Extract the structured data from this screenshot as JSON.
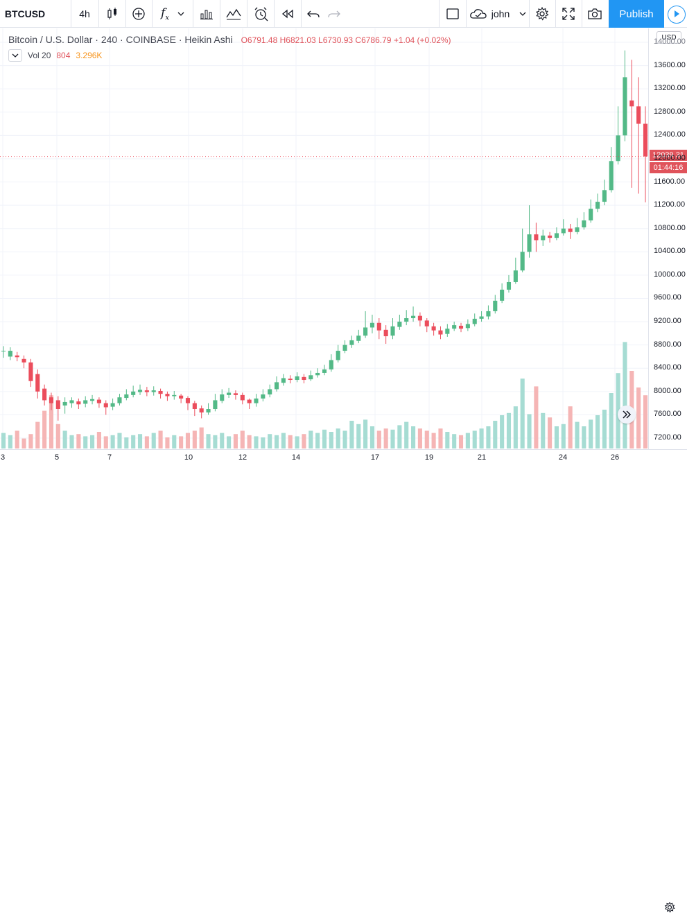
{
  "toolbar": {
    "symbol": "BTCUSD",
    "interval": "4h",
    "user": "john",
    "publish_label": "Publish"
  },
  "legend": {
    "title": "Bitcoin / U.S. Dollar · 240 · COINBASE · Heikin Ashi",
    "open": "O6791.48",
    "high": "H6821.03",
    "low": "L6730.93",
    "close": "C6786.79",
    "change": "+1.04 (+0.02%)"
  },
  "volume_legend": {
    "label": "Vol 20",
    "value": "804",
    "ma": "3.296K"
  },
  "price_axis": {
    "currency": "USD",
    "labels": [
      "14000.00",
      "13600.00",
      "13200.00",
      "12800.00",
      "12400.00",
      "12000.00",
      "11600.00",
      "11200.00",
      "10800.00",
      "10400.00",
      "10000.00",
      "9600.00",
      "9200.00",
      "8800.00",
      "8400.00",
      "8000.00",
      "7600.00",
      "7200.00"
    ],
    "last_price": "12039.31",
    "countdown": "01:44:16"
  },
  "time_axis": {
    "labels": [
      "3",
      "5",
      "7",
      "10",
      "12",
      "14",
      "17",
      "19",
      "21",
      "24",
      "26"
    ]
  },
  "colors": {
    "up": "#53b987",
    "down": "#eb4d5c",
    "accent": "#2196f3"
  },
  "chart_data": {
    "type": "candlestick",
    "y_axis": {
      "min": 7100,
      "max": 14100,
      "step": 400
    },
    "candles": [
      [
        8700,
        8700,
        8780,
        8580
      ],
      [
        8600,
        8700,
        8760,
        8540
      ],
      [
        8620,
        8590,
        8680,
        8520
      ],
      [
        8560,
        8500,
        8620,
        8400
      ],
      [
        8500,
        8180,
        8560,
        8080
      ],
      [
        8300,
        8000,
        8380,
        7880
      ],
      [
        8050,
        7850,
        8120,
        7760
      ],
      [
        7900,
        7800,
        7980,
        7680
      ],
      [
        7850,
        7700,
        7920,
        7500
      ],
      [
        7760,
        7820,
        7900,
        7620
      ],
      [
        7800,
        7850,
        7900,
        7720
      ],
      [
        7830,
        7780,
        7880,
        7700
      ],
      [
        7790,
        7850,
        7920,
        7730
      ],
      [
        7840,
        7870,
        7940,
        7780
      ],
      [
        7860,
        7800,
        7900,
        7720
      ],
      [
        7800,
        7730,
        7850,
        7600
      ],
      [
        7740,
        7800,
        7880,
        7680
      ],
      [
        7800,
        7900,
        7960,
        7760
      ],
      [
        7890,
        7950,
        8040,
        7850
      ],
      [
        7940,
        8000,
        8100,
        7900
      ],
      [
        7990,
        8030,
        8120,
        7940
      ],
      [
        8020,
        7990,
        8080,
        7920
      ],
      [
        7990,
        8020,
        8090,
        7930
      ],
      [
        8010,
        7960,
        8050,
        7880
      ],
      [
        7960,
        7920,
        8000,
        7840
      ],
      [
        7920,
        7940,
        8010,
        7860
      ],
      [
        7930,
        7880,
        7960,
        7800
      ],
      [
        7890,
        7800,
        7920,
        7680
      ],
      [
        7800,
        7700,
        7840,
        7580
      ],
      [
        7710,
        7640,
        7760,
        7540
      ],
      [
        7640,
        7700,
        7800,
        7600
      ],
      [
        7700,
        7850,
        7960,
        7660
      ],
      [
        7840,
        7950,
        8040,
        7800
      ],
      [
        7940,
        7980,
        8060,
        7890
      ],
      [
        7970,
        7940,
        8020,
        7860
      ],
      [
        7940,
        7850,
        7980,
        7780
      ],
      [
        7860,
        7800,
        7880,
        7700
      ],
      [
        7800,
        7880,
        7960,
        7740
      ],
      [
        7880,
        7950,
        8040,
        7830
      ],
      [
        7950,
        8040,
        8120,
        7900
      ],
      [
        8040,
        8160,
        8260,
        8000
      ],
      [
        8150,
        8230,
        8300,
        8100
      ],
      [
        8220,
        8200,
        8280,
        8140
      ],
      [
        8200,
        8260,
        8330,
        8160
      ],
      [
        8250,
        8200,
        8300,
        8140
      ],
      [
        8210,
        8280,
        8360,
        8180
      ],
      [
        8280,
        8320,
        8400,
        8240
      ],
      [
        8320,
        8380,
        8460,
        8280
      ],
      [
        8380,
        8540,
        8640,
        8340
      ],
      [
        8540,
        8700,
        8800,
        8500
      ],
      [
        8700,
        8800,
        8880,
        8660
      ],
      [
        8800,
        8880,
        8960,
        8750
      ],
      [
        8870,
        8960,
        9060,
        8830
      ],
      [
        8960,
        9100,
        9380,
        8920
      ],
      [
        9100,
        9180,
        9320,
        9000
      ],
      [
        9180,
        9050,
        9260,
        8900
      ],
      [
        9060,
        8950,
        9140,
        8820
      ],
      [
        8960,
        9120,
        9260,
        8900
      ],
      [
        9110,
        9200,
        9320,
        9060
      ],
      [
        9200,
        9260,
        9400,
        9140
      ],
      [
        9260,
        9300,
        9460,
        9200
      ],
      [
        9300,
        9220,
        9360,
        9120
      ],
      [
        9220,
        9120,
        9260,
        9020
      ],
      [
        9120,
        9050,
        9180,
        8960
      ],
      [
        9050,
        8980,
        9120,
        8900
      ],
      [
        8990,
        9080,
        9160,
        8940
      ],
      [
        9080,
        9140,
        9200,
        9040
      ],
      [
        9130,
        9080,
        9180,
        9020
      ],
      [
        9090,
        9160,
        9240,
        9040
      ],
      [
        9160,
        9250,
        9340,
        9120
      ],
      [
        9250,
        9290,
        9380,
        9200
      ],
      [
        9290,
        9380,
        9480,
        9240
      ],
      [
        9380,
        9560,
        9660,
        9340
      ],
      [
        9560,
        9750,
        9860,
        9520
      ],
      [
        9750,
        9880,
        10000,
        9700
      ],
      [
        9880,
        10080,
        10300,
        9850
      ],
      [
        10080,
        10400,
        10800,
        10050
      ],
      [
        10400,
        10700,
        11200,
        10300
      ],
      [
        10700,
        10600,
        10900,
        10400
      ],
      [
        10600,
        10680,
        10780,
        10500
      ],
      [
        10680,
        10640,
        10740,
        10560
      ],
      [
        10640,
        10720,
        10820,
        10600
      ],
      [
        10720,
        10800,
        10960,
        10680
      ],
      [
        10800,
        10740,
        10880,
        10620
      ],
      [
        10740,
        10820,
        10980,
        10700
      ],
      [
        10820,
        10940,
        11080,
        10780
      ],
      [
        10940,
        11140,
        11300,
        10900
      ],
      [
        11140,
        11260,
        11400,
        11080
      ],
      [
        11260,
        11460,
        11640,
        11200
      ],
      [
        11460,
        11960,
        12200,
        11420
      ],
      [
        11960,
        12400,
        12900,
        11900
      ],
      [
        12400,
        13400,
        13860,
        12300
      ],
      [
        13000,
        12900,
        13700,
        11500
      ],
      [
        12900,
        12600,
        13400,
        11400
      ],
      [
        12600,
        12039,
        12900,
        11250
      ]
    ],
    "volume": [
      1.4,
      1.2,
      1.6,
      0.9,
      1.3,
      2.4,
      3.4,
      4.8,
      2.2,
      1.6,
      1.2,
      1.3,
      1.1,
      1.2,
      1.5,
      1.1,
      1.2,
      1.4,
      1.0,
      1.2,
      1.3,
      1.1,
      1.4,
      1.6,
      1.0,
      1.2,
      1.1,
      1.4,
      1.6,
      1.9,
      1.3,
      1.2,
      1.4,
      1.1,
      1.3,
      1.6,
      1.2,
      1.1,
      1.0,
      1.3,
      1.2,
      1.4,
      1.2,
      1.1,
      1.3,
      1.6,
      1.4,
      1.7,
      1.5,
      1.8,
      1.6,
      2.5,
      2.2,
      2.6,
      2.0,
      1.6,
      1.8,
      1.7,
      2.1,
      2.4,
      2.0,
      1.8,
      1.6,
      1.4,
      1.8,
      1.5,
      1.3,
      1.2,
      1.4,
      1.6,
      1.8,
      2.0,
      2.5,
      3.0,
      3.2,
      3.8,
      6.3,
      3.1,
      5.6,
      3.2,
      2.8,
      2.0,
      2.2,
      3.8,
      2.4,
      2.0,
      2.6,
      3.0,
      3.5,
      5.0,
      6.8,
      9.6,
      7.0,
      5.5,
      4.8
    ]
  }
}
